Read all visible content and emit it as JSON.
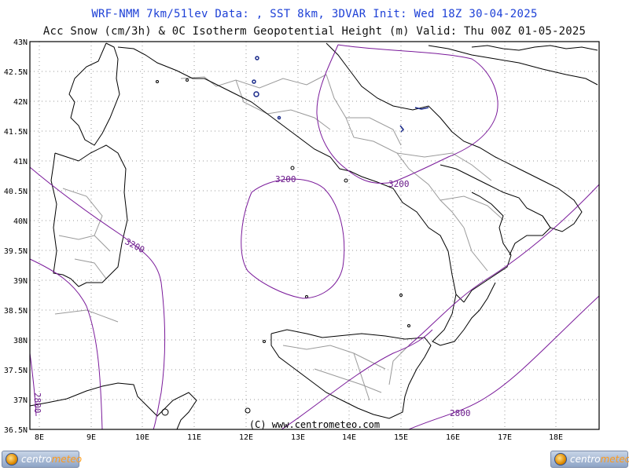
{
  "header": {
    "line1": "WRF-NMM 7km/51lev  Data: , SST 8km, 3DVAR  Init: Wed 18Z 30-04-2025",
    "line2": "Acc Snow (cm/3h) & 0C Isotherm Geopotential Height (m)  Valid: Thu 00Z 01-05-2025"
  },
  "map": {
    "lat_labels": [
      "43N",
      "42.5N",
      "42N",
      "41.5N",
      "41N",
      "40.5N",
      "40N",
      "39.5N",
      "39N",
      "38.5N",
      "38N",
      "37.5N",
      "37N",
      "36.5N"
    ],
    "lon_labels": [
      "8E",
      "9E",
      "10E",
      "11E",
      "12E",
      "13E",
      "14E",
      "15E",
      "16E",
      "17E",
      "18E"
    ],
    "contour_labels": [
      "3200",
      "3200",
      "3200",
      "2800",
      "2800"
    ],
    "copyright": "(C) www.centrometeo.com",
    "colors": {
      "contour": "#7a1a9a",
      "coast": "#000000",
      "borders": "#9a9a9a",
      "snow": "#1a2a8a",
      "title": "#1c3fd6"
    }
  },
  "logo": {
    "word1": "centro",
    "word2": "meteo"
  }
}
